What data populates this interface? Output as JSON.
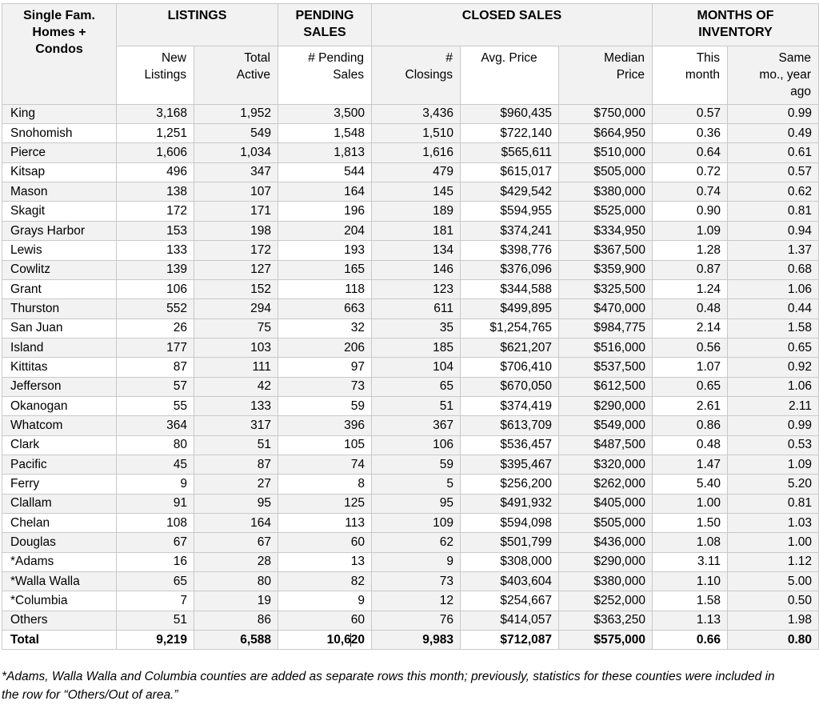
{
  "table": {
    "corner_label": "Single Fam.\nHomes +\nCondos",
    "groups": [
      {
        "label": "LISTINGS"
      },
      {
        "label": "PENDING\nSALES"
      },
      {
        "label": "CLOSED SALES"
      },
      {
        "label": "MONTHS OF\nINVENTORY"
      }
    ],
    "columns": [
      "New\nListings",
      "Total\nActive",
      "# Pending\nSales",
      "#\nClosings",
      "Avg. Price",
      "Median\nPrice",
      "This\nmonth",
      "Same\nmo., year\nago"
    ],
    "rows": [
      {
        "county": "King",
        "values": [
          "3,168",
          "1,952",
          "3,500",
          "3,436",
          "$960,435",
          "$750,000",
          "0.57",
          "0.99"
        ]
      },
      {
        "county": "Snohomish",
        "values": [
          "1,251",
          "549",
          "1,548",
          "1,510",
          "$722,140",
          "$664,950",
          "0.36",
          "0.49"
        ]
      },
      {
        "county": "Pierce",
        "values": [
          "1,606",
          "1,034",
          "1,813",
          "1,616",
          "$565,611",
          "$510,000",
          "0.64",
          "0.61"
        ]
      },
      {
        "county": "Kitsap",
        "values": [
          "496",
          "347",
          "544",
          "479",
          "$615,017",
          "$505,000",
          "0.72",
          "0.57"
        ]
      },
      {
        "county": "Mason",
        "values": [
          "138",
          "107",
          "164",
          "145",
          "$429,542",
          "$380,000",
          "0.74",
          "0.62"
        ]
      },
      {
        "county": "Skagit",
        "values": [
          "172",
          "171",
          "196",
          "189",
          "$594,955",
          "$525,000",
          "0.90",
          "0.81"
        ]
      },
      {
        "county": "Grays Harbor",
        "values": [
          "153",
          "198",
          "204",
          "181",
          "$374,241",
          "$334,950",
          "1.09",
          "0.94"
        ]
      },
      {
        "county": "Lewis",
        "values": [
          "133",
          "172",
          "193",
          "134",
          "$398,776",
          "$367,500",
          "1.28",
          "1.37"
        ]
      },
      {
        "county": "Cowlitz",
        "values": [
          "139",
          "127",
          "165",
          "146",
          "$376,096",
          "$359,900",
          "0.87",
          "0.68"
        ]
      },
      {
        "county": "Grant",
        "values": [
          "106",
          "152",
          "118",
          "123",
          "$344,588",
          "$325,500",
          "1.24",
          "1.06"
        ]
      },
      {
        "county": "Thurston",
        "values": [
          "552",
          "294",
          "663",
          "611",
          "$499,895",
          "$470,000",
          "0.48",
          "0.44"
        ]
      },
      {
        "county": "San Juan",
        "values": [
          "26",
          "75",
          "32",
          "35",
          "$1,254,765",
          "$984,775",
          "2.14",
          "1.58"
        ]
      },
      {
        "county": "Island",
        "values": [
          "177",
          "103",
          "206",
          "185",
          "$621,207",
          "$516,000",
          "0.56",
          "0.65"
        ]
      },
      {
        "county": "Kittitas",
        "values": [
          "87",
          "111",
          "97",
          "104",
          "$706,410",
          "$537,500",
          "1.07",
          "0.92"
        ]
      },
      {
        "county": "Jefferson",
        "values": [
          "57",
          "42",
          "73",
          "65",
          "$670,050",
          "$612,500",
          "0.65",
          "1.06"
        ]
      },
      {
        "county": "Okanogan",
        "values": [
          "55",
          "133",
          "59",
          "51",
          "$374,419",
          "$290,000",
          "2.61",
          "2.11"
        ]
      },
      {
        "county": "Whatcom",
        "values": [
          "364",
          "317",
          "396",
          "367",
          "$613,709",
          "$549,000",
          "0.86",
          "0.99"
        ]
      },
      {
        "county": "Clark",
        "values": [
          "80",
          "51",
          "105",
          "106",
          "$536,457",
          "$487,500",
          "0.48",
          "0.53"
        ]
      },
      {
        "county": "Pacific",
        "values": [
          "45",
          "87",
          "74",
          "59",
          "$395,467",
          "$320,000",
          "1.47",
          "1.09"
        ]
      },
      {
        "county": "Ferry",
        "values": [
          "9",
          "27",
          "8",
          "5",
          "$256,200",
          "$262,000",
          "5.40",
          "5.20"
        ]
      },
      {
        "county": "Clallam",
        "values": [
          "91",
          "95",
          "125",
          "95",
          "$491,932",
          "$405,000",
          "1.00",
          "0.81"
        ]
      },
      {
        "county": "Chelan",
        "values": [
          "108",
          "164",
          "113",
          "109",
          "$594,098",
          "$505,000",
          "1.50",
          "1.03"
        ]
      },
      {
        "county": "Douglas",
        "values": [
          "67",
          "67",
          "60",
          "62",
          "$501,799",
          "$436,000",
          "1.08",
          "1.00"
        ]
      },
      {
        "county": "*Adams",
        "values": [
          "16",
          "28",
          "13",
          "9",
          "$308,000",
          "$290,000",
          "3.11",
          "1.12"
        ]
      },
      {
        "county": "*Walla Walla",
        "values": [
          "65",
          "80",
          "82",
          "73",
          "$403,604",
          "$380,000",
          "1.10",
          "5.00"
        ]
      },
      {
        "county": "*Columbia",
        "values": [
          "7",
          "19",
          "9",
          "12",
          "$254,667",
          "$252,000",
          "1.58",
          "0.50"
        ]
      },
      {
        "county": "Others",
        "values": [
          "51",
          "86",
          "60",
          "76",
          "$414,057",
          "$363,250",
          "1.13",
          "1.98"
        ]
      }
    ],
    "total": {
      "county": "Total",
      "values": [
        "9,219",
        "6,588",
        "10,620",
        "9,983",
        "$712,087",
        "$575,000",
        "0.66",
        "0.80"
      ]
    }
  },
  "footnote": "*Adams, Walla Walla and Columbia counties are added as separate rows this month; previously, statistics for these counties were included in the row for “Others/Out of area.”"
}
